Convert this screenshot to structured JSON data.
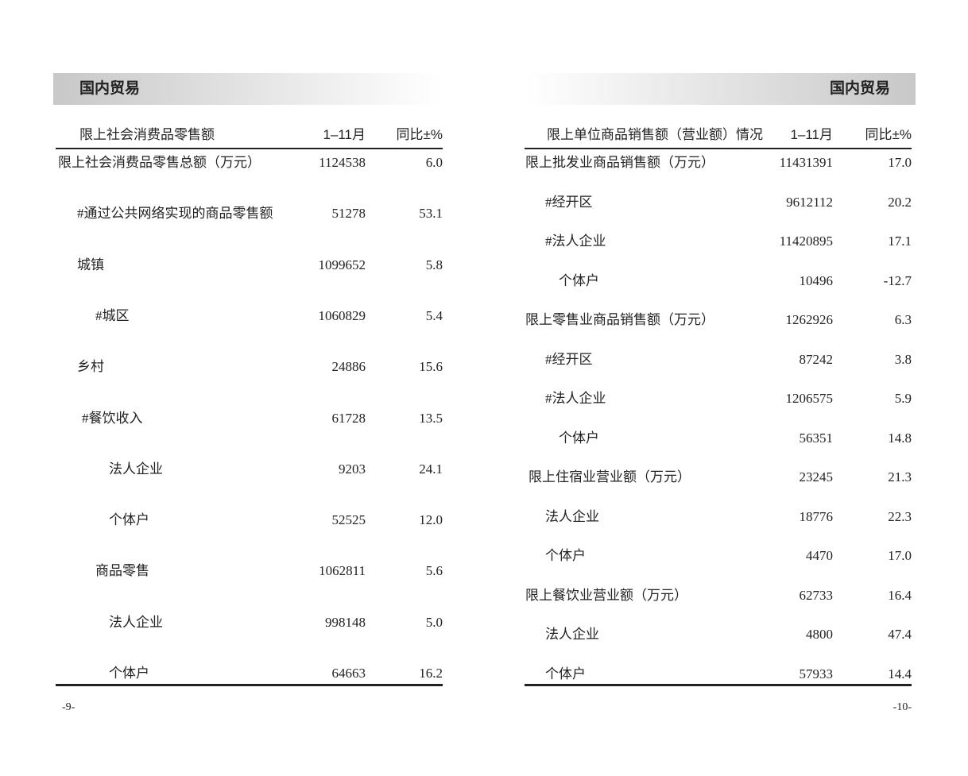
{
  "left": {
    "header": "国内贸易",
    "table": {
      "columns": [
        "限上社会消费品零售额",
        "1–11月",
        "同比±%"
      ],
      "rows": [
        [
          "限上社会消费品零售总额（万元）",
          "1124538",
          "6.0"
        ],
        [
          "#通过公共网络实现的商品零售额",
          "51278",
          "53.1"
        ],
        [
          "城镇",
          "1099652",
          "5.8"
        ],
        [
          "#城区",
          "1060829",
          "5.4"
        ],
        [
          "乡村",
          "24886",
          "15.6"
        ],
        [
          "#餐饮收入",
          "61728",
          "13.5"
        ],
        [
          "法人企业",
          "9203",
          "24.1"
        ],
        [
          "个体户",
          "52525",
          "12.0"
        ],
        [
          "商品零售",
          "1062811",
          "5.6"
        ],
        [
          "法人企业",
          "998148",
          "5.0"
        ],
        [
          "个体户",
          "64663",
          "16.2"
        ]
      ]
    },
    "page_number": "-9-"
  },
  "right": {
    "header": "国内贸易",
    "table": {
      "columns": [
        "限上单位商品销售额（营业额）情况",
        "1–11月",
        "同比±%"
      ],
      "rows": [
        [
          "限上批发业商品销售额（万元）",
          "11431391",
          "17.0"
        ],
        [
          "#经开区",
          "9612112",
          "20.2"
        ],
        [
          "#法人企业",
          "11420895",
          "17.1"
        ],
        [
          "个体户",
          "10496",
          "-12.7"
        ],
        [
          "限上零售业商品销售额（万元）",
          "1262926",
          "6.3"
        ],
        [
          "#经开区",
          "87242",
          "3.8"
        ],
        [
          "#法人企业",
          "1206575",
          "5.9"
        ],
        [
          "个体户",
          "56351",
          "14.8"
        ],
        [
          "限上住宿业营业额（万元）",
          "23245",
          "21.3"
        ],
        [
          "法人企业",
          "18776",
          "22.3"
        ],
        [
          "个体户",
          "4470",
          "17.0"
        ],
        [
          "限上餐饮业营业额（万元）",
          "62733",
          "16.4"
        ],
        [
          "法人企业",
          "4800",
          "47.4"
        ],
        [
          "个体户",
          "57933",
          "14.4"
        ]
      ]
    },
    "page_number": "-10-"
  }
}
